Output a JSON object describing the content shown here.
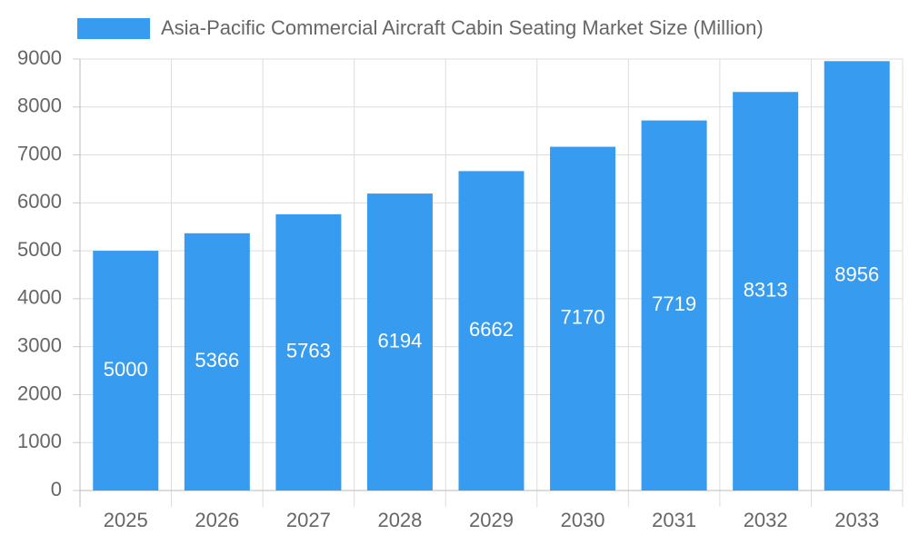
{
  "chart_data": {
    "type": "bar",
    "categories": [
      "2025",
      "2026",
      "2027",
      "2028",
      "2029",
      "2030",
      "2031",
      "2032",
      "2033"
    ],
    "series": [
      {
        "name": "Asia-Pacific Commercial Aircraft Cabin Seating Market Size (Million)",
        "color": "#379bef",
        "values": [
          5000,
          5366,
          5763,
          6194,
          6662,
          7170,
          7719,
          8313,
          8956
        ]
      }
    ],
    "ylim": [
      0,
      9000
    ],
    "yticks": [
      0,
      1000,
      2000,
      3000,
      4000,
      5000,
      6000,
      7000,
      8000,
      9000
    ],
    "grid": true,
    "legend": "top"
  }
}
